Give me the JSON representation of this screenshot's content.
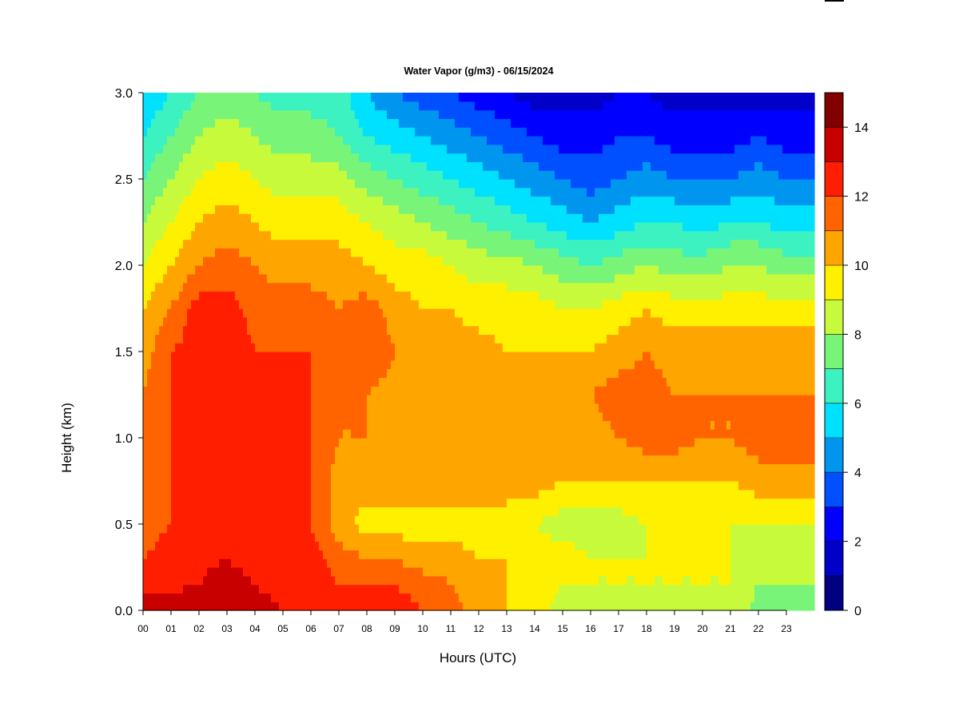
{
  "chart_data": {
    "type": "heatmap",
    "title": "Water Vapor (g/m3) - 06/15/2024",
    "xlabel": "Hours (UTC)",
    "ylabel": "Height (km)",
    "xlim": [
      0,
      24
    ],
    "ylim": [
      0.0,
      3.0
    ],
    "x_tick_labels": [
      "00",
      "01",
      "02",
      "03",
      "04",
      "05",
      "06",
      "07",
      "08",
      "09",
      "10",
      "11",
      "12",
      "13",
      "14",
      "15",
      "16",
      "17",
      "18",
      "19",
      "20",
      "21",
      "22",
      "23"
    ],
    "y_tick_labels": [
      "0.0",
      "0.5",
      "1.0",
      "1.5",
      "2.0",
      "2.5",
      "3.0"
    ],
    "y_tick_values": [
      0.0,
      0.5,
      1.0,
      1.5,
      2.0,
      2.5,
      3.0
    ],
    "colorbar": {
      "min": 0,
      "max": 15,
      "step": 1,
      "tick_labels": [
        "0",
        "2",
        "4",
        "6",
        "8",
        "10",
        "12",
        "14"
      ],
      "tick_values": [
        0,
        2,
        4,
        6,
        8,
        10,
        12,
        14
      ],
      "colors": [
        "#000080",
        "#0000c8",
        "#0000ff",
        "#0050ff",
        "#0096f0",
        "#00e0ff",
        "#3cf2c0",
        "#78f578",
        "#c8fa3c",
        "#fff000",
        "#ffa500",
        "#ff6400",
        "#ff1e00",
        "#c80000",
        "#820000"
      ]
    },
    "grid": false,
    "heights_km": [
      0.0,
      0.15,
      0.3,
      0.5,
      0.75,
      1.0,
      1.25,
      1.5,
      1.75,
      2.0,
      2.25,
      2.5,
      2.75,
      3.0
    ],
    "hours": [
      0,
      1,
      2,
      3,
      4,
      5,
      6,
      7,
      8,
      9,
      10,
      11,
      12,
      13,
      14,
      15,
      16,
      17,
      18,
      19,
      20,
      21,
      22,
      23,
      24
    ],
    "values": [
      [
        13.5,
        12.5,
        12.0,
        11.5,
        11.0,
        11.0,
        11.0,
        10.5,
        10.0,
        9.0,
        8.0,
        7.0,
        6.0,
        5.0
      ],
      [
        13.5,
        12.8,
        12.5,
        12.0,
        12.0,
        12.0,
        12.0,
        12.0,
        11.0,
        10.0,
        9.0,
        8.0,
        7.0,
        6.0
      ],
      [
        13.5,
        13.0,
        12.8,
        12.5,
        12.5,
        12.5,
        12.5,
        12.5,
        12.5,
        11.0,
        10.0,
        9.0,
        8.0,
        7.0
      ],
      [
        14.0,
        13.5,
        13.0,
        12.8,
        12.5,
        12.8,
        13.0,
        13.0,
        12.5,
        11.5,
        10.5,
        9.5,
        8.5,
        7.5
      ],
      [
        13.5,
        13.0,
        12.5,
        12.2,
        12.0,
        12.0,
        12.0,
        12.0,
        11.5,
        11.0,
        10.0,
        9.0,
        8.0,
        7.0
      ],
      [
        13.0,
        12.5,
        12.0,
        12.0,
        12.0,
        12.0,
        12.0,
        12.0,
        11.5,
        10.5,
        9.5,
        8.5,
        7.5,
        6.5
      ],
      [
        13.0,
        12.5,
        12.5,
        12.0,
        12.0,
        12.0,
        12.0,
        12.0,
        11.5,
        10.5,
        9.5,
        8.5,
        7.5,
        6.5
      ],
      [
        12.5,
        12.0,
        11.5,
        10.5,
        10.5,
        11.0,
        11.0,
        11.5,
        11.0,
        10.5,
        9.5,
        8.5,
        7.0,
        6.5
      ],
      [
        12.5,
        12.0,
        11.0,
        9.5,
        10.5,
        11.0,
        11.0,
        12.0,
        11.5,
        10.0,
        9.0,
        7.5,
        6.0,
        5.0
      ],
      [
        12.5,
        12.0,
        11.0,
        9.5,
        10.5,
        10.5,
        10.5,
        11.0,
        10.5,
        9.5,
        8.5,
        7.0,
        5.5,
        4.0
      ],
      [
        12.0,
        11.5,
        10.5,
        9.5,
        10.5,
        10.5,
        10.5,
        10.5,
        10.0,
        9.5,
        8.0,
        6.5,
        5.0,
        3.5
      ],
      [
        11.5,
        11.0,
        10.5,
        9.5,
        10.5,
        10.5,
        10.5,
        10.5,
        10.0,
        9.0,
        7.5,
        6.0,
        4.5,
        3.0
      ],
      [
        10.5,
        10.5,
        10.0,
        9.5,
        10.5,
        10.5,
        10.5,
        10.5,
        9.5,
        8.5,
        7.0,
        5.5,
        4.0,
        2.5
      ],
      [
        10.0,
        10.0,
        10.0,
        9.5,
        10.5,
        10.5,
        10.5,
        10.0,
        9.5,
        8.5,
        6.5,
        5.0,
        3.5,
        2.0
      ],
      [
        9.5,
        9.5,
        9.5,
        9.0,
        10.5,
        10.5,
        10.5,
        10.0,
        9.5,
        8.0,
        6.0,
        4.5,
        3.0,
        1.5
      ],
      [
        8.5,
        9.0,
        9.5,
        8.5,
        10.0,
        10.5,
        10.5,
        10.0,
        9.0,
        7.5,
        5.5,
        4.0,
        2.5,
        1.5
      ],
      [
        8.5,
        9.0,
        9.0,
        8.5,
        10.0,
        10.5,
        11.0,
        10.0,
        9.0,
        7.0,
        5.0,
        3.5,
        2.5,
        1.5
      ],
      [
        8.5,
        9.0,
        9.0,
        8.5,
        10.0,
        11.0,
        11.5,
        10.5,
        9.5,
        7.5,
        5.5,
        4.0,
        3.0,
        2.0
      ],
      [
        8.5,
        9.0,
        9.0,
        9.0,
        10.0,
        11.5,
        11.5,
        11.0,
        10.0,
        8.0,
        6.0,
        4.5,
        3.0,
        2.0
      ],
      [
        8.5,
        9.0,
        9.0,
        9.0,
        10.0,
        11.5,
        11.0,
        10.5,
        9.5,
        7.5,
        6.0,
        4.0,
        2.5,
        1.5
      ],
      [
        8.5,
        9.0,
        9.0,
        9.0,
        10.0,
        11.0,
        11.0,
        10.5,
        9.5,
        7.5,
        5.5,
        4.0,
        2.5,
        1.5
      ],
      [
        9.0,
        9.0,
        9.0,
        9.0,
        10.0,
        11.0,
        11.0,
        10.5,
        9.5,
        8.0,
        6.0,
        4.0,
        2.5,
        1.5
      ],
      [
        7.5,
        8.0,
        8.5,
        9.0,
        10.5,
        11.5,
        11.0,
        10.5,
        9.5,
        8.0,
        6.0,
        4.5,
        3.0,
        1.5
      ],
      [
        7.5,
        8.0,
        8.5,
        9.0,
        10.5,
        11.5,
        11.0,
        10.5,
        9.5,
        7.5,
        5.5,
        4.0,
        2.5,
        1.5
      ],
      [
        7.5,
        8.0,
        8.5,
        9.0,
        10.5,
        11.5,
        11.0,
        10.5,
        9.5,
        7.5,
        5.5,
        4.0,
        2.5,
        1.5
      ]
    ]
  }
}
